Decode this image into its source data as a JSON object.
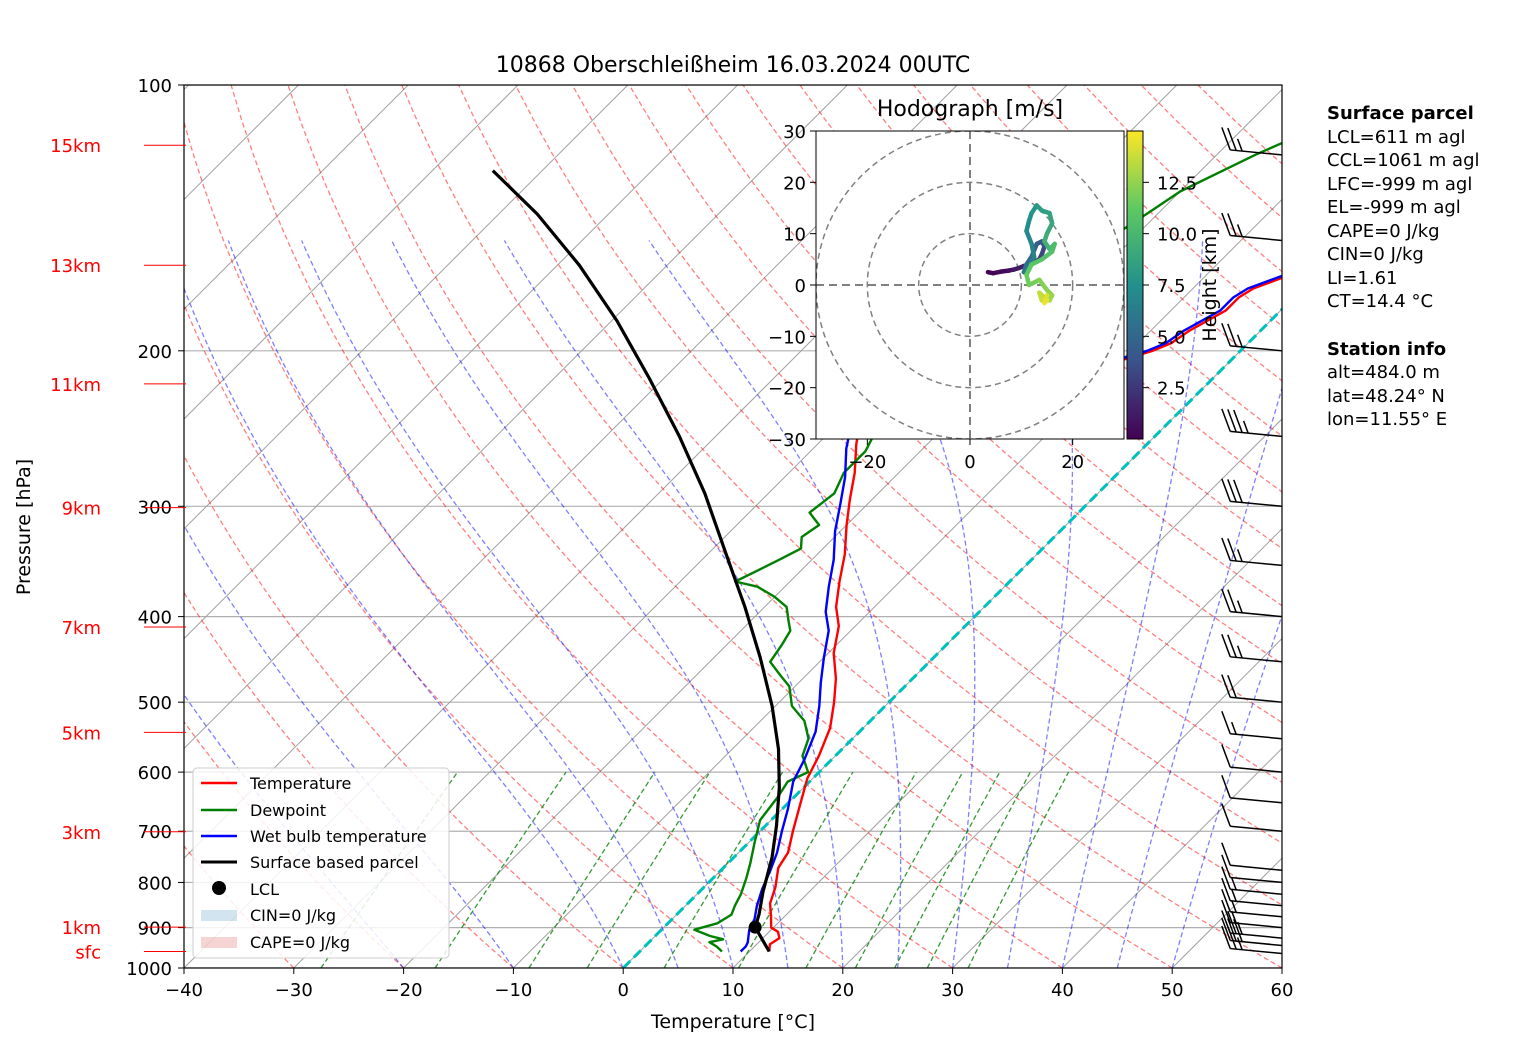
{
  "chart_data": {
    "type": "skew-t",
    "title": "10868 Oberschleißheim 16.03.2024 00UTC",
    "xlabel": "Temperature [°C]",
    "ylabel": "Pressure [hPa]",
    "xlim": [
      -40,
      60
    ],
    "ylim": [
      1000,
      100
    ],
    "x_ticks": [
      "−40",
      "−30",
      "−20",
      "−10",
      "0",
      "10",
      "20",
      "30",
      "40",
      "50",
      "60"
    ],
    "x_tick_values": [
      -40,
      -30,
      -20,
      -10,
      0,
      10,
      20,
      30,
      40,
      50,
      60
    ],
    "y_ticks": [
      "100",
      "200",
      "300",
      "400",
      "500",
      "600",
      "700",
      "800",
      "900",
      "1000"
    ],
    "y_tick_values": [
      100,
      200,
      300,
      400,
      500,
      600,
      700,
      800,
      900,
      1000
    ],
    "height_labels": [
      {
        "label": "15km",
        "p": 117
      },
      {
        "label": "13km",
        "p": 160
      },
      {
        "label": "11km",
        "p": 218
      },
      {
        "label": "9km",
        "p": 301
      },
      {
        "label": "7km",
        "p": 411
      },
      {
        "label": "5km",
        "p": 541
      },
      {
        "label": "3km",
        "p": 701
      },
      {
        "label": "1km",
        "p": 899
      },
      {
        "label": "sfc",
        "p": 958
      }
    ],
    "series": [
      {
        "name": "Temperature",
        "color": "#ff0000",
        "points": [
          [
            11.8,
            958
          ],
          [
            11.2,
            940
          ],
          [
            11.5,
            925
          ],
          [
            10.8,
            910
          ],
          [
            9.8,
            900
          ],
          [
            8.8,
            875
          ],
          [
            7.5,
            845
          ],
          [
            6.5,
            810
          ],
          [
            5.0,
            770
          ],
          [
            4.5,
            740
          ],
          [
            3.0,
            700
          ],
          [
            1.5,
            660
          ],
          [
            -0.5,
            610
          ],
          [
            -1.5,
            575
          ],
          [
            -3.0,
            535
          ],
          [
            -5.0,
            500
          ],
          [
            -7.0,
            470
          ],
          [
            -9.5,
            440
          ],
          [
            -11.5,
            410
          ],
          [
            -13.5,
            390
          ],
          [
            -15.5,
            365
          ],
          [
            -17.5,
            340
          ],
          [
            -20.0,
            315
          ],
          [
            -22.0,
            295
          ],
          [
            -24.0,
            275
          ],
          [
            -26.5,
            255
          ],
          [
            -28.5,
            238
          ],
          [
            -29.5,
            232
          ],
          [
            -28.0,
            225
          ],
          [
            -22.0,
            218
          ],
          [
            -16.0,
            213
          ],
          [
            -11.5,
            210
          ],
          [
            -10.0,
            205
          ],
          [
            -8.0,
            200
          ],
          [
            -7.0,
            196
          ],
          [
            -6.5,
            190
          ],
          [
            -5.0,
            180
          ],
          [
            -5.0,
            174
          ],
          [
            -4.5,
            170
          ],
          [
            -2.0,
            163
          ],
          [
            -0.5,
            155
          ],
          [
            1.0,
            150
          ],
          [
            2.5,
            145
          ],
          [
            2.0,
            140
          ],
          [
            3.5,
            135
          ],
          [
            2.5,
            130
          ],
          [
            3.0,
            125
          ],
          [
            2.8,
            120
          ],
          [
            4.0,
            117
          ],
          [
            5.0,
            116
          ]
        ]
      },
      {
        "name": "Dewpoint",
        "color": "#008000",
        "points": [
          [
            7.5,
            958
          ],
          [
            6.5,
            945
          ],
          [
            5.5,
            935
          ],
          [
            6.5,
            928
          ],
          [
            5.0,
            920
          ],
          [
            3.0,
            905
          ],
          [
            4.5,
            890
          ],
          [
            5.0,
            870
          ],
          [
            4.5,
            850
          ],
          [
            4.0,
            825
          ],
          [
            3.0,
            790
          ],
          [
            2.0,
            760
          ],
          [
            0.5,
            720
          ],
          [
            -1.0,
            680
          ],
          [
            -1.5,
            640
          ],
          [
            -2.0,
            615
          ],
          [
            -1.0,
            600
          ],
          [
            -3.0,
            575
          ],
          [
            -4.0,
            550
          ],
          [
            -6.0,
            525
          ],
          [
            -8.5,
            505
          ],
          [
            -10.5,
            480
          ],
          [
            -12.5,
            465
          ],
          [
            -14.5,
            450
          ],
          [
            -15.0,
            430
          ],
          [
            -15.5,
            415
          ],
          [
            -16.5,
            405
          ],
          [
            -18.0,
            390
          ],
          [
            -20.0,
            380
          ],
          [
            -22.5,
            370
          ],
          [
            -25.0,
            365
          ],
          [
            -24.0,
            355
          ],
          [
            -23.0,
            345
          ],
          [
            -22.0,
            335
          ],
          [
            -23.0,
            325
          ],
          [
            -22.5,
            315
          ],
          [
            -24.5,
            305
          ],
          [
            -24.0,
            290
          ],
          [
            -25.0,
            275
          ],
          [
            -25.0,
            260
          ],
          [
            -26.0,
            245
          ],
          [
            -27.0,
            235
          ],
          [
            -28.5,
            225
          ],
          [
            -31.0,
            215
          ],
          [
            -31.5,
            208
          ],
          [
            -30.0,
            203
          ],
          [
            -29.0,
            195
          ],
          [
            -28.0,
            186
          ],
          [
            -28.0,
            178
          ],
          [
            -27.0,
            170
          ],
          [
            -25.0,
            162
          ],
          [
            -24.0,
            155
          ],
          [
            -22.0,
            148
          ],
          [
            -21.0,
            140
          ],
          [
            -20.0,
            132
          ],
          [
            -18.0,
            125
          ],
          [
            -16.5,
            120
          ],
          [
            -15.0,
            116
          ]
        ]
      },
      {
        "name": "Wet bulb temperature",
        "color": "#0000ff",
        "points": [
          [
            9.2,
            958
          ],
          [
            9.2,
            945
          ],
          [
            9.0,
            935
          ],
          [
            8.5,
            920
          ],
          [
            8.0,
            905
          ],
          [
            7.5,
            880
          ],
          [
            6.5,
            850
          ],
          [
            5.5,
            815
          ],
          [
            4.5,
            775
          ],
          [
            3.5,
            740
          ],
          [
            2.0,
            700
          ],
          [
            0.5,
            660
          ],
          [
            -1.5,
            615
          ],
          [
            -2.5,
            580
          ],
          [
            -4.0,
            540
          ],
          [
            -6.0,
            505
          ],
          [
            -8.0,
            475
          ],
          [
            -10.0,
            445
          ],
          [
            -12.0,
            415
          ],
          [
            -14.0,
            395
          ],
          [
            -16.0,
            370
          ],
          [
            -18.0,
            345
          ],
          [
            -20.5,
            320
          ],
          [
            -22.5,
            298
          ],
          [
            -24.5,
            278
          ],
          [
            -27.0,
            258
          ],
          [
            -29.0,
            240
          ],
          [
            -30.0,
            232
          ],
          [
            -28.5,
            225
          ],
          [
            -22.5,
            218
          ],
          [
            -16.5,
            213
          ],
          [
            -12.0,
            210
          ],
          [
            -10.5,
            205
          ],
          [
            -8.5,
            200
          ],
          [
            -7.5,
            196
          ],
          [
            -7.0,
            190
          ],
          [
            -5.5,
            180
          ],
          [
            -5.5,
            174
          ],
          [
            -5.0,
            170
          ],
          [
            -2.5,
            163
          ],
          [
            -1.0,
            155
          ],
          [
            0.5,
            150
          ],
          [
            2.0,
            145
          ],
          [
            1.5,
            140
          ],
          [
            3.0,
            135
          ],
          [
            2.0,
            130
          ],
          [
            2.5,
            125
          ],
          [
            2.3,
            120
          ],
          [
            3.5,
            117
          ],
          [
            4.5,
            116
          ]
        ]
      },
      {
        "name": "Surface based parcel",
        "color": "#000000",
        "points": [
          [
            11.8,
            958
          ],
          [
            8.3,
            899
          ],
          [
            7.5,
            870
          ],
          [
            5.8,
            820
          ],
          [
            3.5,
            750
          ],
          [
            1.0,
            690
          ],
          [
            -2.2,
            625
          ],
          [
            -5.8,
            565
          ],
          [
            -10.3,
            505
          ],
          [
            -15.8,
            445
          ],
          [
            -21.8,
            390
          ],
          [
            -28.3,
            340
          ],
          [
            -35.8,
            290
          ],
          [
            -43.3,
            250
          ],
          [
            -51.3,
            215
          ],
          [
            -59.5,
            185
          ],
          [
            -68.0,
            160
          ],
          [
            -76.5,
            140
          ],
          [
            -84.5,
            125
          ]
        ]
      }
    ],
    "lcl": {
      "t": 8.3,
      "p": 899
    },
    "freezing_level_line": {
      "color": "#00bfbf",
      "t": 0
    },
    "legend": {
      "placement": "lower-left",
      "entries": [
        "Temperature",
        "Dewpoint",
        "Wet bulb temperature",
        "Surface based parcel",
        "LCL",
        "CIN=0 J/kg",
        "CAPE=0 J/kg"
      ]
    },
    "dry_adiabat_color": "#ff0000",
    "moist_adiabat_color": "#0000ff",
    "mixing_ratio_color": "#008000",
    "wind_barbs": [
      {
        "p": 963,
        "speed_kt": 25
      },
      {
        "p": 943,
        "speed_kt": 30
      },
      {
        "p": 925,
        "speed_kt": 25
      },
      {
        "p": 900,
        "speed_kt": 15
      },
      {
        "p": 875,
        "speed_kt": 15
      },
      {
        "p": 850,
        "speed_kt": 15
      },
      {
        "p": 825,
        "speed_kt": 15
      },
      {
        "p": 800,
        "speed_kt": 10
      },
      {
        "p": 775,
        "speed_kt": 10
      },
      {
        "p": 700,
        "speed_kt": 10
      },
      {
        "p": 650,
        "speed_kt": 10
      },
      {
        "p": 600,
        "speed_kt": 10
      },
      {
        "p": 550,
        "speed_kt": 15
      },
      {
        "p": 500,
        "speed_kt": 20
      },
      {
        "p": 450,
        "speed_kt": 25
      },
      {
        "p": 400,
        "speed_kt": 25
      },
      {
        "p": 350,
        "speed_kt": 25
      },
      {
        "p": 300,
        "speed_kt": 30
      },
      {
        "p": 250,
        "speed_kt": 35
      },
      {
        "p": 200,
        "speed_kt": 25
      },
      {
        "p": 150,
        "speed_kt": 25
      },
      {
        "p": 120,
        "speed_kt": 25
      }
    ],
    "hodograph": {
      "title": "Hodograph [m/s]",
      "xlim": [
        -30,
        30
      ],
      "ylim": [
        -30,
        30
      ],
      "x_ticks": [
        "−20",
        "0",
        "20"
      ],
      "x_tick_values": [
        -20,
        0,
        20
      ],
      "y_ticks": [
        "30",
        "20",
        "10",
        "0",
        "−10",
        "−20",
        "−30"
      ],
      "y_tick_values": [
        30,
        20,
        10,
        0,
        -10,
        -20,
        -30
      ],
      "rings": [
        10,
        20,
        30
      ],
      "colorbar_label": "Height [km]",
      "colorbar_ticks": [
        "2.5",
        "5.0",
        "7.5",
        "10.0",
        "12.5"
      ],
      "colorbar_tick_values": [
        2.5,
        5.0,
        7.5,
        10.0,
        12.5
      ],
      "height_range": [
        0,
        15
      ],
      "points": [
        [
          3.5,
          2.5,
          0.0
        ],
        [
          4.5,
          2.3,
          0.2
        ],
        [
          6.0,
          2.6,
          0.4
        ],
        [
          7.5,
          2.8,
          0.7
        ],
        [
          8.5,
          3.0,
          1.0
        ],
        [
          9.5,
          3.3,
          1.3
        ],
        [
          10.5,
          3.7,
          1.6
        ],
        [
          11.5,
          4.0,
          2.0
        ],
        [
          12.5,
          4.5,
          2.4
        ],
        [
          13.5,
          5.0,
          2.8
        ],
        [
          14.0,
          6.0,
          3.2
        ],
        [
          14.5,
          7.5,
          3.6
        ],
        [
          14.0,
          8.5,
          4.0
        ],
        [
          13.0,
          8.0,
          4.5
        ],
        [
          12.0,
          5.5,
          5.0
        ],
        [
          11.0,
          4.0,
          5.5
        ],
        [
          10.5,
          2.5,
          6.0
        ],
        [
          11.5,
          3.5,
          6.3
        ],
        [
          12.5,
          5.5,
          6.6
        ],
        [
          12.0,
          8.0,
          6.9
        ],
        [
          11.0,
          10.5,
          7.2
        ],
        [
          11.5,
          12.5,
          7.5
        ],
        [
          12.0,
          14.0,
          7.8
        ],
        [
          13.0,
          15.5,
          8.1
        ],
        [
          14.0,
          14.5,
          8.4
        ],
        [
          15.5,
          14.0,
          8.7
        ],
        [
          16.0,
          12.0,
          9.0
        ],
        [
          15.0,
          10.0,
          9.3
        ],
        [
          14.5,
          8.5,
          9.6
        ],
        [
          15.5,
          7.0,
          10.0
        ],
        [
          16.5,
          8.0,
          10.3
        ],
        [
          16.0,
          6.5,
          10.6
        ],
        [
          14.0,
          5.0,
          10.9
        ],
        [
          12.0,
          4.0,
          11.2
        ],
        [
          11.0,
          2.0,
          11.5
        ],
        [
          11.5,
          0.0,
          11.8
        ],
        [
          13.5,
          1.0,
          12.1
        ],
        [
          15.0,
          -1.0,
          12.4
        ],
        [
          16.0,
          -2.0,
          12.7
        ],
        [
          15.5,
          -3.0,
          13.0
        ],
        [
          14.5,
          -2.5,
          13.3
        ],
        [
          13.5,
          -1.5,
          13.6
        ],
        [
          14.0,
          -3.0,
          13.9
        ],
        [
          15.0,
          -2.0,
          14.2
        ],
        [
          14.5,
          -3.5,
          14.5
        ],
        [
          15.0,
          -3.0,
          14.8
        ]
      ]
    }
  },
  "surface_parcel": {
    "title": "Surface parcel",
    "lines": [
      "LCL=611 m agl",
      "CCL=1061 m agl",
      "LFC=-999 m agl",
      "EL=-999 m agl",
      "CAPE=0 J/kg",
      "CIN=0 J/kg",
      "LI=1.61",
      "CT=14.4 °C"
    ]
  },
  "station_info": {
    "title": "Station info",
    "lines": [
      "alt=484.0 m",
      "lat=48.24° N",
      "lon=11.55° E"
    ]
  }
}
